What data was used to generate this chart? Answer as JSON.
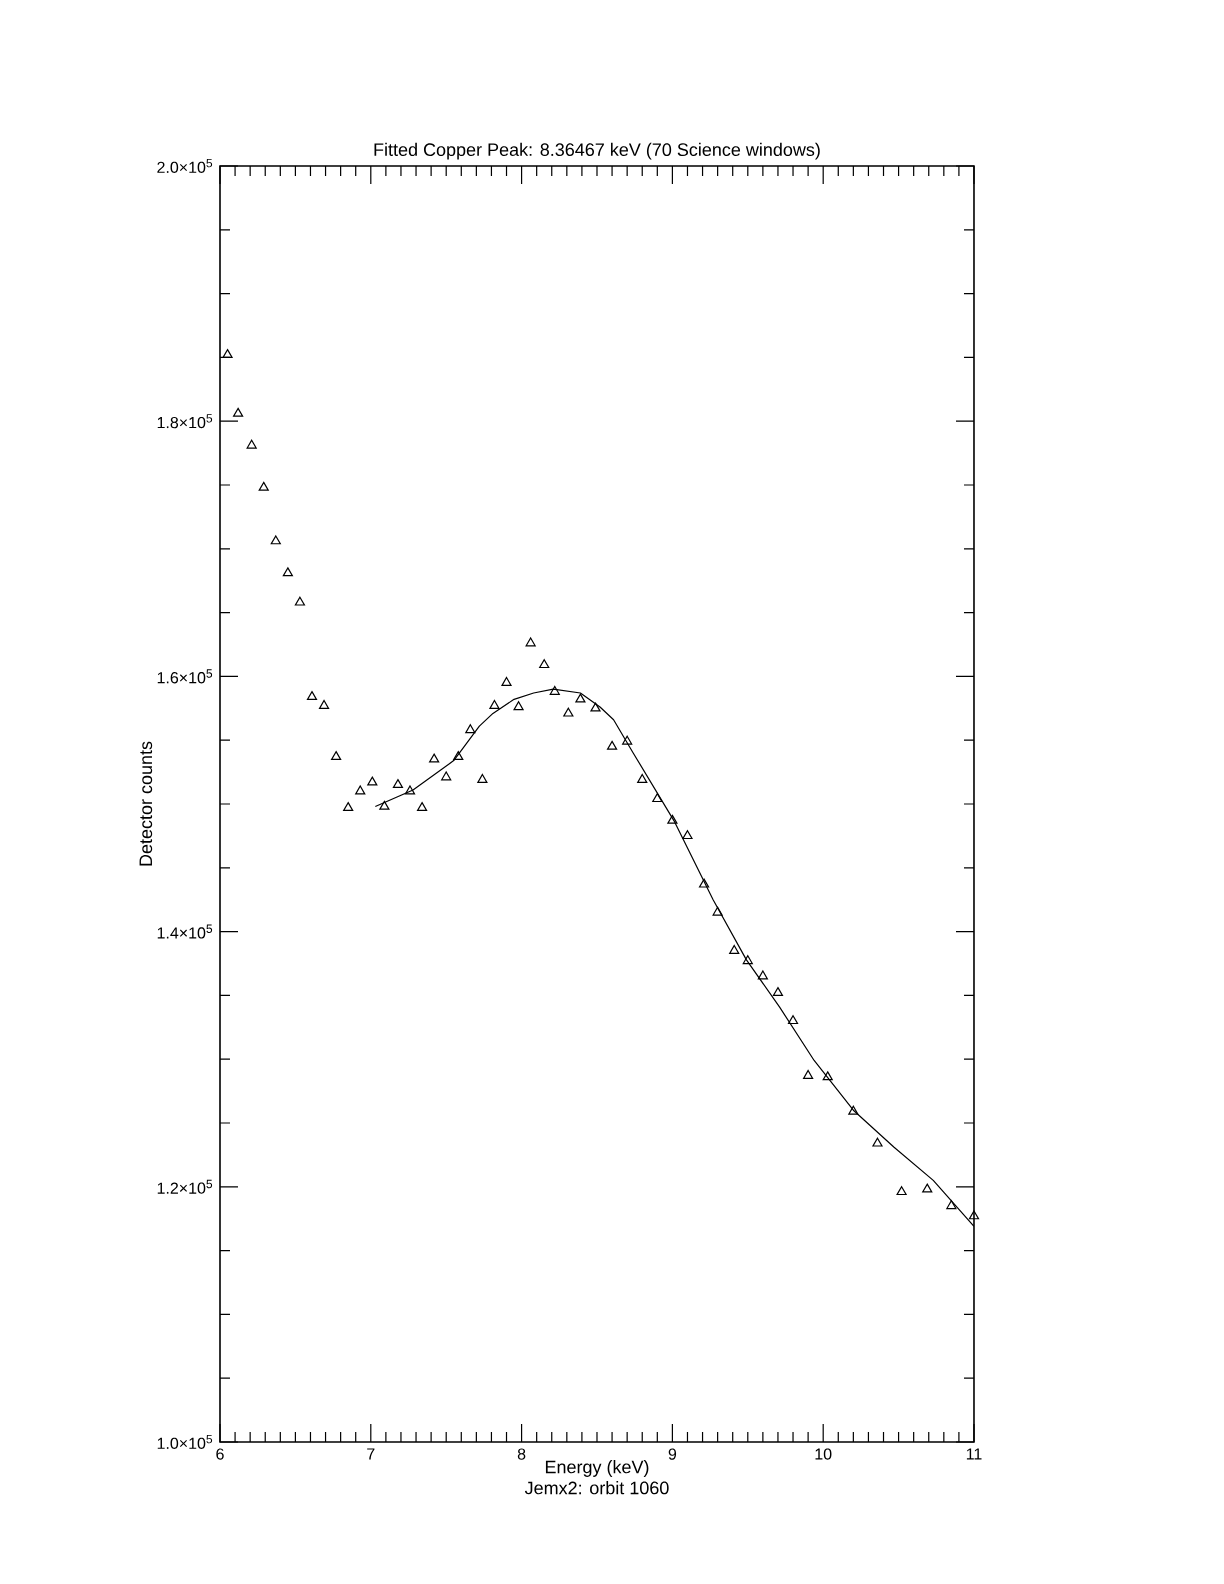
{
  "chart_data": {
    "type": "scatter",
    "title": "Fitted Copper Peak: 8.36467 keV (70 Science windows)",
    "xlabel": "Energy (keV)",
    "ylabel": "Detector counts",
    "annotations": [
      "Jemx2: orbit 1060"
    ],
    "xlim": [
      6,
      11
    ],
    "xticks": [
      6,
      7,
      8,
      9,
      10,
      11
    ],
    "ylim": [
      100000,
      200000
    ],
    "yticks": [
      {
        "value": 100000,
        "label": "1.0×10$^{5}$"
      },
      {
        "value": 120000,
        "label": "1.2×10$^{5}$"
      },
      {
        "value": 140000,
        "label": "1.4×10$^{5}$"
      },
      {
        "value": 160000,
        "label": "1.6×10$^{5}$"
      },
      {
        "value": 180000,
        "label": "1.8×10$^{5}$"
      },
      {
        "value": 200000,
        "label": "2.0×10$^{5}$"
      }
    ],
    "grid": false,
    "series": [
      {
        "marker": "triangle",
        "color": "#000000",
        "x": [
          6.05,
          6.12,
          6.21,
          6.29,
          6.37,
          6.45,
          6.53,
          6.61,
          6.69,
          6.77,
          6.85,
          6.93,
          7.01,
          7.09,
          7.18,
          7.26,
          7.34,
          7.42,
          7.5,
          7.58,
          7.66,
          7.74,
          7.82,
          7.9,
          7.98,
          8.06,
          8.15,
          8.22,
          8.31,
          8.39,
          8.49,
          8.6,
          8.7,
          8.8,
          8.9,
          9.0,
          9.1,
          9.21,
          9.3,
          9.41,
          9.5,
          9.6,
          9.7,
          9.8,
          9.9,
          10.03,
          10.2,
          10.36,
          10.52,
          10.69,
          10.85,
          11.0
        ],
        "values": [
          185200,
          180600,
          178100,
          174800,
          170600,
          168100,
          165800,
          158400,
          157700,
          153700,
          149700,
          151000,
          151700,
          149800,
          151500,
          151000,
          149700,
          153500,
          152100,
          153700,
          155800,
          151900,
          157700,
          159500,
          157600,
          162600,
          160900,
          158800,
          157100,
          158200,
          157500,
          154500,
          154900,
          151900,
          150400,
          148700,
          147500,
          143700,
          141500,
          138500,
          137700,
          136500,
          135200,
          133000,
          128700,
          128600,
          125900,
          123400,
          119600,
          119800,
          118500,
          117700
        ]
      },
      {
        "type": "line",
        "marker": "none",
        "line_style": "solid",
        "color": "#000000",
        "x": [
          7.03,
          7.28,
          7.55,
          7.72,
          7.81,
          7.95,
          8.08,
          8.21,
          8.39,
          8.52,
          8.61,
          8.74,
          9.01,
          9.27,
          9.49,
          9.71,
          9.94,
          10.2,
          10.47,
          10.73,
          11.0
        ],
        "values": [
          149800,
          151100,
          153400,
          156100,
          157100,
          158200,
          158700,
          159000,
          158700,
          157600,
          156600,
          154000,
          148700,
          142500,
          137800,
          134100,
          129900,
          126000,
          123100,
          120500,
          116900
        ]
      }
    ]
  }
}
